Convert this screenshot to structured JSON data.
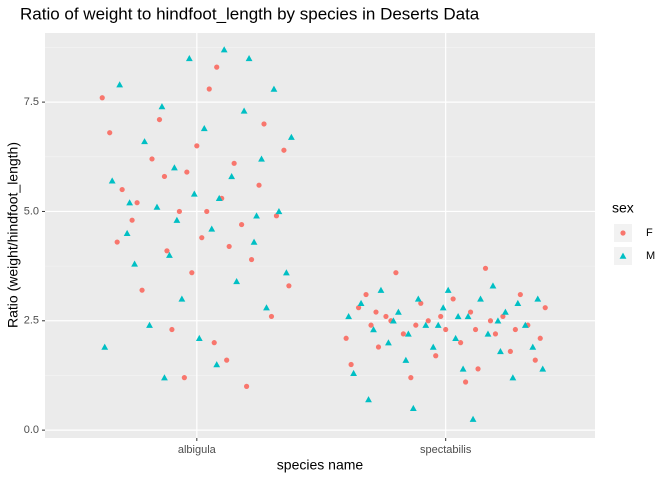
{
  "chart_data": {
    "type": "scatter",
    "title": "Ratio of weight to hindfoot_length by species in Deserts Data",
    "x_label": "species name",
    "y_label": "Ratio (weight/hindfoot_length)",
    "legend_title": "sex",
    "legend_position": "right",
    "grid": true,
    "minor_grid": true,
    "xlim": [
      0.39,
      2.6
    ],
    "xticks": [
      {
        "value": 1,
        "label": "albigula"
      },
      {
        "value": 2,
        "label": "spectabilis"
      }
    ],
    "ylim": [
      -0.18,
      9.08
    ],
    "yticks": [
      {
        "value": 0,
        "label": "0.0"
      },
      2.5,
      {
        "value": 5,
        "label": "5.0"
      },
      7.5
    ],
    "series": [
      {
        "name": "F",
        "color": "#F8766D",
        "marker": "circle",
        "x": [
          0.62,
          0.65,
          0.7,
          0.74,
          0.78,
          0.82,
          0.85,
          0.88,
          0.9,
          0.93,
          0.96,
          0.98,
          1.0,
          1.02,
          1.05,
          1.07,
          1.1,
          1.12,
          1.15,
          1.18,
          1.2,
          1.22,
          1.25,
          1.27,
          1.3,
          1.32,
          1.35,
          1.37,
          0.68,
          0.76,
          0.87,
          1.04,
          1.13,
          0.95,
          1.08,
          1.6,
          1.62,
          1.65,
          1.68,
          1.7,
          1.73,
          1.76,
          1.8,
          1.83,
          1.86,
          1.9,
          1.93,
          1.96,
          2.0,
          2.03,
          2.06,
          2.1,
          2.13,
          2.16,
          2.2,
          2.23,
          2.26,
          2.3,
          2.33,
          2.36,
          2.4,
          2.38,
          1.78,
          1.98,
          2.08,
          1.88,
          2.18,
          2.28,
          1.72,
          2.12
        ],
        "values": [
          7.6,
          6.8,
          5.5,
          4.8,
          3.2,
          6.2,
          7.1,
          4.1,
          2.3,
          5.0,
          5.9,
          3.6,
          6.5,
          4.4,
          7.8,
          2.0,
          5.3,
          1.6,
          6.1,
          4.7,
          1.0,
          3.9,
          5.6,
          7.0,
          2.6,
          4.9,
          6.4,
          3.3,
          4.3,
          5.2,
          5.8,
          5.0,
          4.2,
          1.2,
          8.3,
          2.1,
          1.5,
          2.8,
          3.1,
          2.4,
          1.9,
          2.6,
          3.6,
          2.2,
          1.2,
          2.9,
          2.5,
          1.7,
          2.3,
          3.0,
          2.0,
          2.7,
          1.4,
          3.7,
          2.2,
          2.6,
          1.8,
          3.1,
          2.4,
          1.6,
          2.8,
          2.1,
          2.5,
          2.6,
          1.1,
          2.4,
          2.5,
          2.3,
          2.7,
          2.3
        ]
      },
      {
        "name": "M",
        "color": "#00BFC4",
        "marker": "triangle",
        "x": [
          0.63,
          0.66,
          0.69,
          0.72,
          0.75,
          0.79,
          0.81,
          0.84,
          0.86,
          0.89,
          0.91,
          0.94,
          0.97,
          0.99,
          1.01,
          1.03,
          1.06,
          1.08,
          1.11,
          1.14,
          1.16,
          1.19,
          1.21,
          1.23,
          1.26,
          1.28,
          1.31,
          1.33,
          1.36,
          1.38,
          0.73,
          0.92,
          1.09,
          1.24,
          0.87,
          1.61,
          1.63,
          1.66,
          1.69,
          1.71,
          1.74,
          1.77,
          1.81,
          1.84,
          1.87,
          1.89,
          1.92,
          1.95,
          1.99,
          2.01,
          2.04,
          2.07,
          2.09,
          2.11,
          2.14,
          2.17,
          2.19,
          2.22,
          2.24,
          2.27,
          2.29,
          2.32,
          2.35,
          2.37,
          2.39,
          1.79,
          1.97,
          2.05,
          2.21,
          1.85
        ],
        "values": [
          1.9,
          5.7,
          7.9,
          4.5,
          3.8,
          6.6,
          2.4,
          5.1,
          7.4,
          4.0,
          6.0,
          3.0,
          8.5,
          5.4,
          2.1,
          6.9,
          4.6,
          1.5,
          8.7,
          5.8,
          3.4,
          7.3,
          8.5,
          4.3,
          6.2,
          2.8,
          7.8,
          5.0,
          3.6,
          6.7,
          5.2,
          4.8,
          5.3,
          4.9,
          1.2,
          2.6,
          1.3,
          2.9,
          0.7,
          2.3,
          3.2,
          2.0,
          2.7,
          1.6,
          0.5,
          3.0,
          2.4,
          1.9,
          2.8,
          3.2,
          2.1,
          1.4,
          2.6,
          0.25,
          3.0,
          2.2,
          3.3,
          1.8,
          2.7,
          1.2,
          2.9,
          2.4,
          1.9,
          3.0,
          1.4,
          2.5,
          2.4,
          2.6,
          2.5,
          2.2
        ]
      }
    ]
  }
}
